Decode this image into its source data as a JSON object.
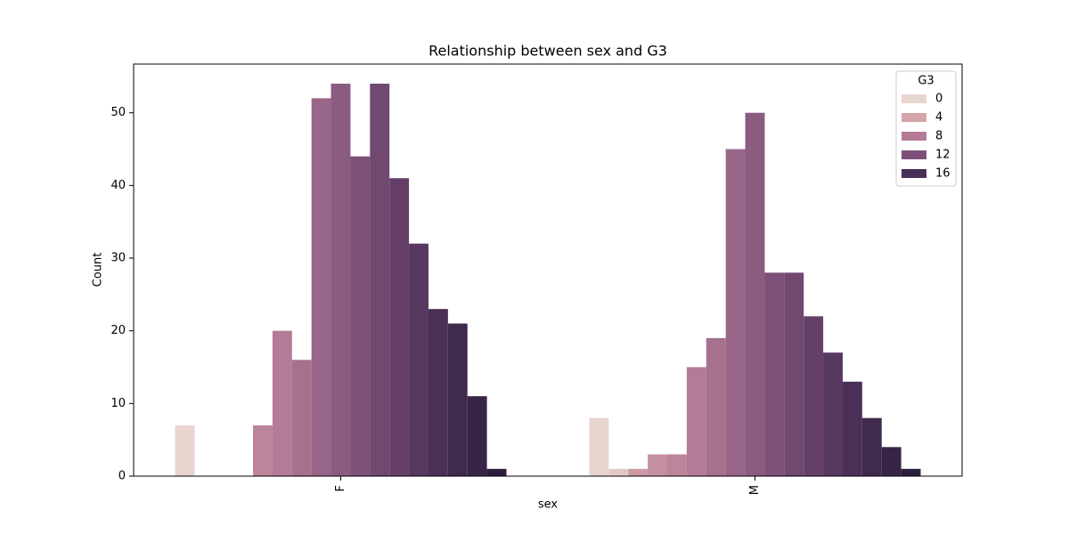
{
  "chart_data": {
    "type": "bar",
    "title": "Relationship between sex and G3",
    "x_label": "sex",
    "y_label": "Count",
    "categories": [
      "F",
      "M"
    ],
    "series": [
      {
        "hue": 0,
        "color": "#e8d5d0",
        "values": [
          7,
          8
        ]
      },
      {
        "hue": 1,
        "color": "#e3c9c6",
        "values": [
          0,
          1
        ]
      },
      {
        "hue": 5,
        "color": "#cb9aa4",
        "values": [
          0,
          1
        ]
      },
      {
        "hue": 6,
        "color": "#c4909f",
        "values": [
          0,
          3
        ]
      },
      {
        "hue": 7,
        "color": "#bc859b",
        "values": [
          7,
          3
        ]
      },
      {
        "hue": 8,
        "color": "#b47a96",
        "values": [
          20,
          15
        ]
      },
      {
        "hue": 9,
        "color": "#a6708f",
        "values": [
          16,
          19
        ]
      },
      {
        "hue": 10,
        "color": "#996588",
        "values": [
          52,
          45
        ]
      },
      {
        "hue": 11,
        "color": "#8b5b80",
        "values": [
          54,
          50
        ]
      },
      {
        "hue": 12,
        "color": "#7d5079",
        "values": [
          44,
          28
        ]
      },
      {
        "hue": 13,
        "color": "#704870",
        "values": [
          54,
          28
        ]
      },
      {
        "hue": 14,
        "color": "#644068",
        "values": [
          41,
          22
        ]
      },
      {
        "hue": 15,
        "color": "#57385f",
        "values": [
          32,
          17
        ]
      },
      {
        "hue": 16,
        "color": "#4a3056",
        "values": [
          23,
          13
        ]
      },
      {
        "hue": 17,
        "color": "#402a4e",
        "values": [
          21,
          8
        ]
      },
      {
        "hue": 18,
        "color": "#372446",
        "values": [
          11,
          4
        ]
      },
      {
        "hue": 19,
        "color": "#2d1e3e",
        "values": [
          1,
          1
        ]
      }
    ],
    "ylim": [
      0,
      56.7
    ],
    "yticks": [
      0,
      10,
      20,
      30,
      40,
      50
    ],
    "legend": {
      "title": "G3",
      "labels": [
        0,
        4,
        8,
        12,
        16
      ],
      "colors": [
        "#e8d5d0",
        "#d3a5a8",
        "#b47a96",
        "#7d5079",
        "#4a3056"
      ],
      "position": "upper right"
    }
  }
}
